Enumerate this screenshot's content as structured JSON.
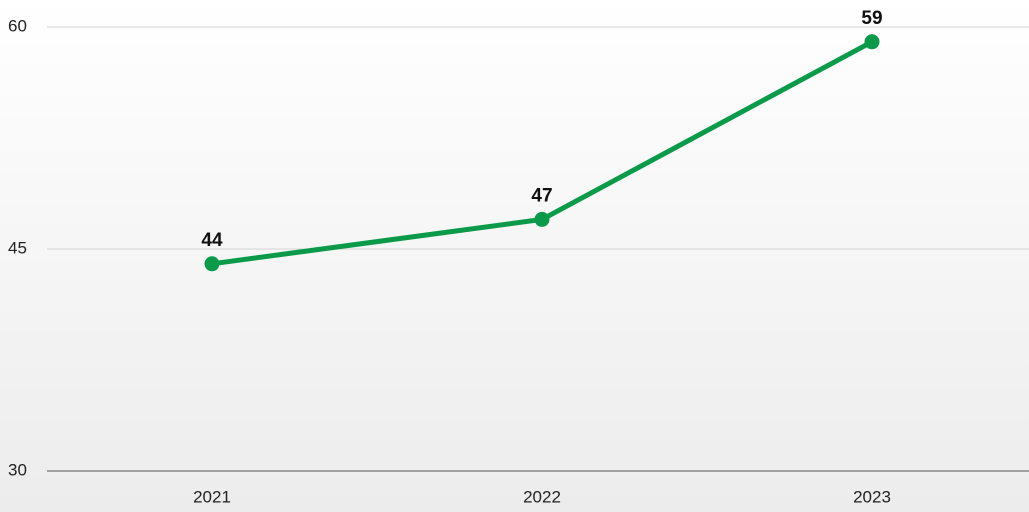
{
  "chart_data": {
    "type": "line",
    "categories": [
      "2021",
      "2022",
      "2023"
    ],
    "values": [
      44,
      47,
      59
    ],
    "color": "#0b9a49",
    "ylim": [
      30,
      60
    ],
    "yticks": [
      30,
      45,
      60
    ],
    "grid": true
  }
}
